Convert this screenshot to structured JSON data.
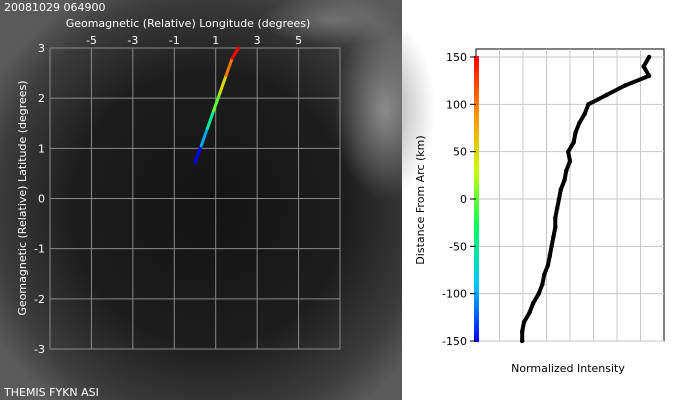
{
  "timestamp": "20081029 064900",
  "instrument_label": "THEMIS FYKN ASI",
  "colors": {
    "sky_bg": "#1b1b1b",
    "grid": "#8a8a8a",
    "panel_text": "#ffffff",
    "right_text": "#000000",
    "trace": "#000000"
  },
  "chart_data": [
    {
      "type": "line",
      "title": "",
      "xlabel": "Geomagnetic (Relative) Longitude (degrees)",
      "ylabel": "Geomagnetic (Relative) Latitude (degrees)",
      "xlim": [
        -7,
        7
      ],
      "ylim": [
        -3,
        3
      ],
      "x_ticks": [
        "-5",
        "-3",
        "-1",
        "1",
        "3",
        "5"
      ],
      "x_tick_values": [
        -5,
        -3,
        -1,
        1,
        3,
        5
      ],
      "y_ticks": [
        "3",
        "2",
        "1",
        "0",
        "-1",
        "-2",
        "-3"
      ],
      "y_tick_values": [
        3,
        2,
        1,
        0,
        -1,
        -2,
        -3
      ],
      "grid": true,
      "series": [
        {
          "x": [
            0.0,
            0.3,
            0.6,
            0.9,
            1.2,
            1.5,
            1.8,
            2.1
          ],
          "y": [
            0.72,
            1.05,
            1.4,
            1.75,
            2.1,
            2.45,
            2.8,
            3.0
          ]
        }
      ],
      "colormap": [
        "#0000ff",
        "#00c8ff",
        "#00ff60",
        "#c8ff00",
        "#ff9000",
        "#ff0000"
      ]
    },
    {
      "type": "line",
      "title": "",
      "xlabel": "Normalized Intensity",
      "ylabel": "Distance From Arc (km)",
      "xlim": [
        0,
        1
      ],
      "ylim": [
        -150,
        150
      ],
      "y_ticks": [
        "150",
        "100",
        "50",
        "0",
        "-50",
        "-100",
        "-150"
      ],
      "y_tick_values": [
        150,
        100,
        50,
        0,
        -50,
        -100,
        -150
      ],
      "grid": true,
      "series": [
        {
          "y": [
            -150,
            -140,
            -130,
            -120,
            -110,
            -100,
            -90,
            -80,
            -70,
            -60,
            -50,
            -40,
            -30,
            -20,
            -10,
            0,
            10,
            20,
            30,
            40,
            50,
            60,
            70,
            80,
            90,
            100,
            110,
            120,
            130,
            140,
            150
          ],
          "x": [
            0.24,
            0.24,
            0.25,
            0.28,
            0.3,
            0.33,
            0.35,
            0.36,
            0.38,
            0.39,
            0.4,
            0.41,
            0.42,
            0.42,
            0.43,
            0.44,
            0.45,
            0.47,
            0.48,
            0.5,
            0.49,
            0.52,
            0.53,
            0.55,
            0.58,
            0.6,
            0.7,
            0.8,
            0.93,
            0.9,
            0.93
          ]
        }
      ],
      "colormap": [
        "#0000ff",
        "#00c8ff",
        "#00ff60",
        "#c8ff00",
        "#ff9000",
        "#ff0000"
      ]
    }
  ]
}
